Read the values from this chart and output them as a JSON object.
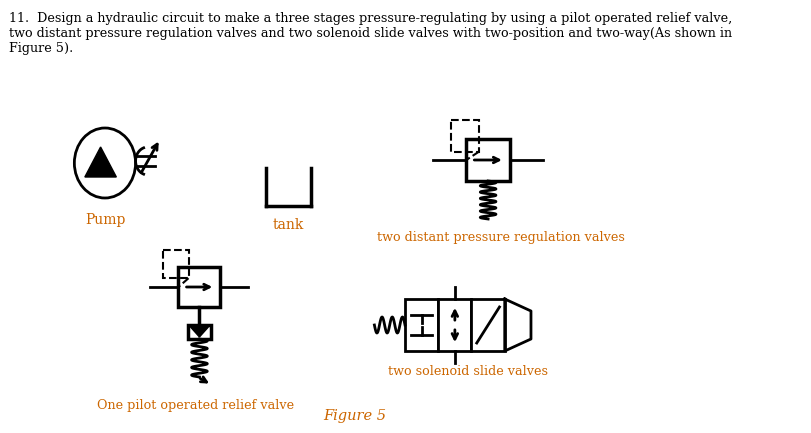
{
  "title_line1": "11.  Design a hydraulic circuit to make a three stages pressure-regulating by using a pilot operated relief valve,",
  "title_line2": "two distant pressure regulation valves and two solenoid slide valves with two-position and two-way(As shown in",
  "title_line3": "Figure 5).",
  "label_pump": "Pump",
  "label_tank": "tank",
  "label_pressure_reg": "two distant pressure regulation valves",
  "label_relief": "One pilot operated relief valve",
  "label_solenoid": "two solenoid slide valves",
  "label_figure": "Figure 5",
  "text_color": "#000000",
  "label_color": "#cc6600",
  "bg_color": "#ffffff",
  "lw": 2.0,
  "dlw": 1.5
}
